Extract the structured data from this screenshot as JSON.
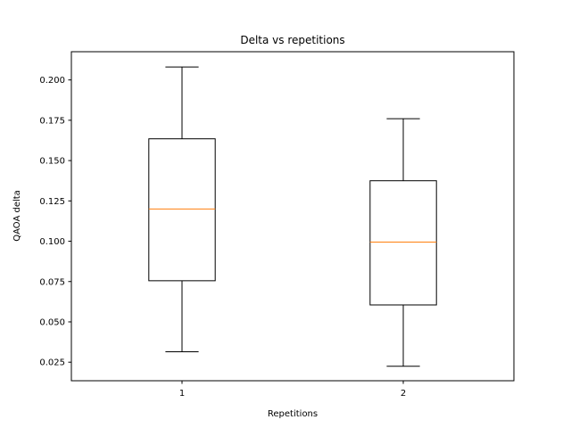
{
  "chart_data": {
    "type": "box",
    "title": "Delta vs repetitions",
    "xlabel": "Repetitions",
    "ylabel": "QAOA delta",
    "categories": [
      "1",
      "2"
    ],
    "boxes": [
      {
        "category": "1",
        "whisker_low": 0.0315,
        "q1": 0.0755,
        "median": 0.12,
        "q3": 0.1635,
        "whisker_high": 0.208
      },
      {
        "category": "2",
        "whisker_low": 0.0225,
        "q1": 0.0605,
        "median": 0.0995,
        "q3": 0.1375,
        "whisker_high": 0.176
      }
    ],
    "ylim": [
      0.0135,
      0.2175
    ],
    "xlim": [
      0.5,
      2.5
    ],
    "yticks": [
      "0.025",
      "0.050",
      "0.075",
      "0.100",
      "0.125",
      "0.150",
      "0.175",
      "0.200"
    ],
    "grid": false,
    "colors": {
      "box": "#000000",
      "median": "#ff7f0e",
      "whisker": "#000000"
    }
  }
}
